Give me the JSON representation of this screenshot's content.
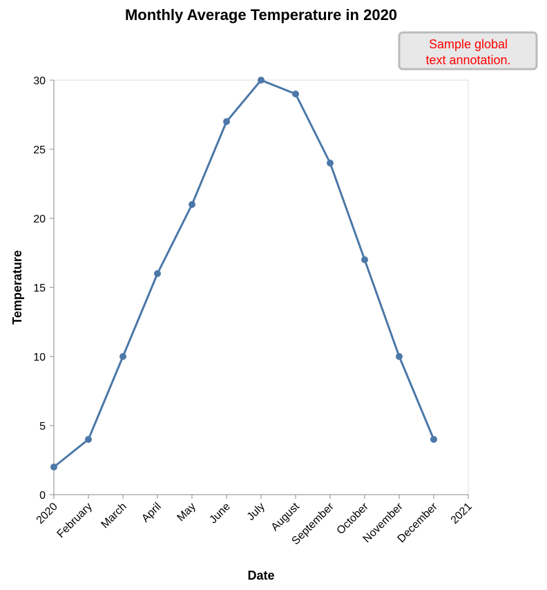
{
  "chart_data": {
    "type": "line",
    "title": "Monthly Average Temperature in 2020",
    "xlabel": "Date",
    "ylabel": "Temperature",
    "x_tick_labels": [
      "2020",
      "February",
      "March",
      "April",
      "May",
      "June",
      "July",
      "August",
      "September",
      "October",
      "November",
      "December",
      "2021"
    ],
    "categories": [
      "2020-01",
      "2020-02",
      "2020-03",
      "2020-04",
      "2020-05",
      "2020-06",
      "2020-07",
      "2020-08",
      "2020-09",
      "2020-10",
      "2020-11",
      "2020-12"
    ],
    "series": [
      {
        "name": "Temperature",
        "values": [
          2,
          4,
          10,
          16,
          21,
          27,
          30,
          29,
          24,
          17,
          10,
          4
        ]
      }
    ],
    "ylim": [
      0,
      30
    ],
    "y_ticks": [
      0,
      5,
      10,
      15,
      20,
      25,
      30
    ],
    "grid": false,
    "colors": {
      "line": "#4c78a8",
      "annotation_text": "#ff0000",
      "annotation_fill": "#e8e8e8",
      "annotation_stroke": "#bbbbbb"
    },
    "annotation": {
      "lines": [
        "Sample global",
        "text annotation."
      ],
      "placement": "top-right"
    }
  }
}
